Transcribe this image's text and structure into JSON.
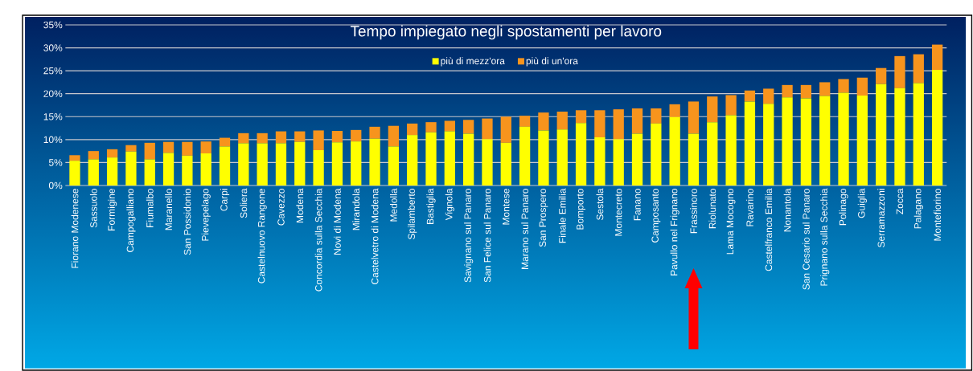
{
  "chart_data": {
    "type": "bar",
    "stacked": true,
    "title": "Tempo impiegato negli spostamenti per lavoro",
    "categories": [
      "Fiorano Modenese",
      "Sassuolo",
      "Formigine",
      "Campogalliano",
      "Fiumalbo",
      "Maranello",
      "San Possidonio",
      "Pievepelago",
      "Carpi",
      "Soliera",
      "Castelnuovo Rangone",
      "Cavezzo",
      "Modena",
      "Concordia sulla Secchia",
      "Novi di Modena",
      "Mirandola",
      "Castelvetro di Modena",
      "Medolla",
      "Spilamberto",
      "Bastiglia",
      "Vignola",
      "Savignano sul Panaro",
      "San Felice sul Panaro",
      "Montese",
      "Marano sul Panaro",
      "San Prospero",
      "Finale Emilia",
      "Bomporto",
      "Sestola",
      "Montecreto",
      "Fanano",
      "Camposanto",
      "Pavullo nel Frignano",
      "Frassinoro",
      "Riolunato",
      "Lama Mocogno",
      "Ravarino",
      "Castelfranco Emilia",
      "Nonantola",
      "San Cesario sul Panaro",
      "Prignano sulla Secchia",
      "Polinago",
      "Guiglia",
      "Serramazzoni",
      "Zocca",
      "Palagano",
      "Montefiorino"
    ],
    "series": [
      {
        "name": "più di mezz'ora",
        "color": "#ffff00",
        "values": [
          5.4,
          5.7,
          6.1,
          7.4,
          5.7,
          7.1,
          6.5,
          7.0,
          8.5,
          9.2,
          9.2,
          9.2,
          9.5,
          7.7,
          9.4,
          9.6,
          10.2,
          8.5,
          11.0,
          11.6,
          11.8,
          11.3,
          10.1,
          9.3,
          12.8,
          12.0,
          12.2,
          13.6,
          10.5,
          10.1,
          11.3,
          13.5,
          14.9,
          11.3,
          13.8,
          15.3,
          18.3,
          17.8,
          19.2,
          19.0,
          19.5,
          20.2,
          19.6,
          22.1,
          21.2,
          22.3,
          25.2
        ]
      },
      {
        "name": "più di un'ora",
        "color": "#f7941d",
        "values": [
          1.2,
          1.8,
          1.8,
          1.4,
          3.6,
          2.4,
          3.0,
          2.6,
          1.9,
          2.2,
          2.2,
          2.6,
          2.3,
          4.3,
          2.5,
          2.5,
          2.6,
          4.5,
          2.5,
          2.2,
          2.3,
          3.0,
          4.5,
          5.7,
          2.4,
          3.9,
          3.9,
          2.8,
          5.9,
          6.5,
          5.5,
          3.3,
          2.8,
          7.0,
          5.6,
          4.4,
          2.4,
          3.3,
          2.7,
          2.9,
          3.0,
          3.0,
          3.9,
          3.5,
          7.0,
          6.3,
          5.5
        ]
      }
    ],
    "ylim": [
      0,
      35
    ],
    "yticks": [
      {
        "value": 0,
        "label": "0%"
      },
      {
        "value": 5,
        "label": "5%"
      },
      {
        "value": 10,
        "label": "10%"
      },
      {
        "value": 15,
        "label": "15%"
      },
      {
        "value": 20,
        "label": "20%"
      },
      {
        "value": 25,
        "label": "25%"
      },
      {
        "value": 30,
        "label": "30%"
      },
      {
        "value": 35,
        "label": "35%"
      }
    ],
    "grid": "y",
    "legend": "top"
  }
}
